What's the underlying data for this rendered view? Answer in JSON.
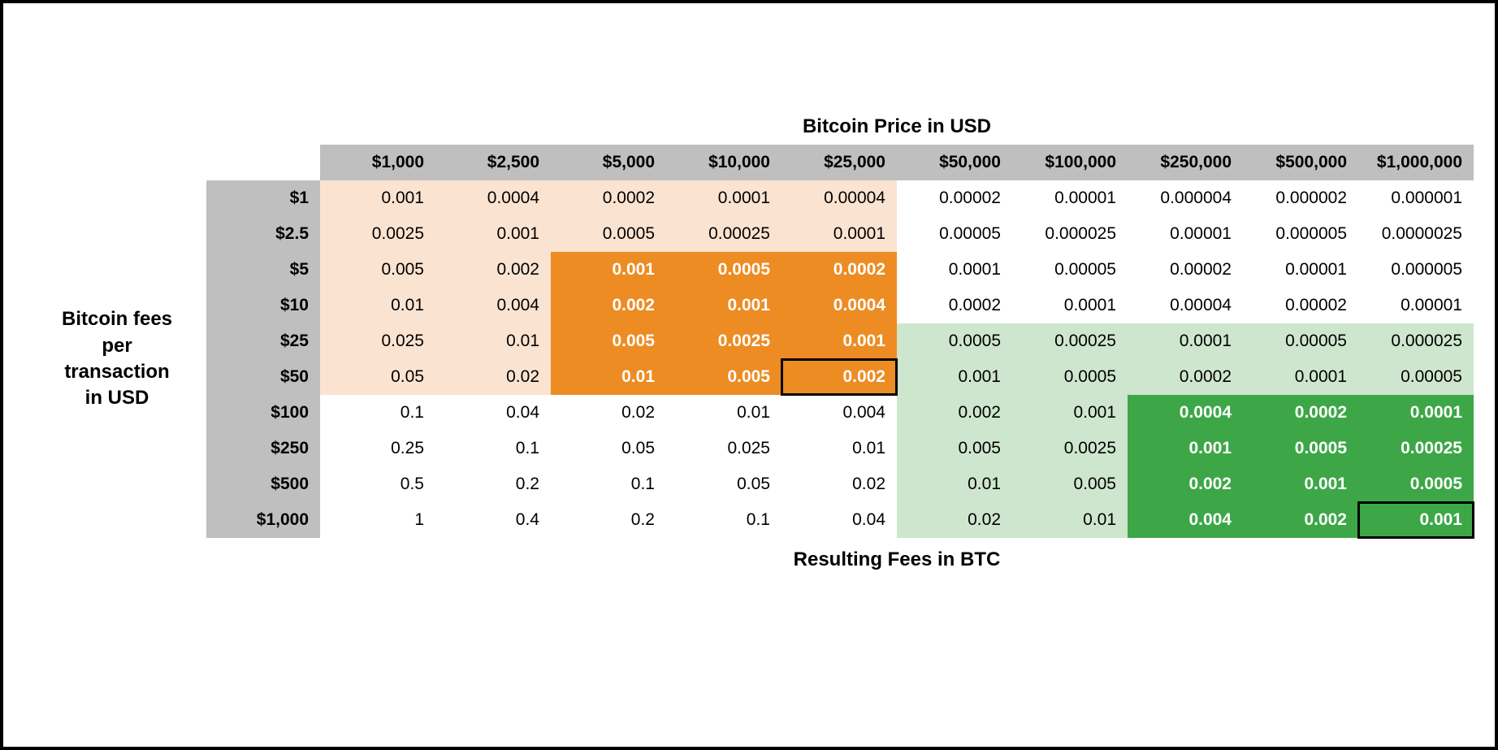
{
  "titles": {
    "top": "Bitcoin Price in USD",
    "side": "Bitcoin fees per transaction in USD",
    "bottom": "Resulting Fees in BTC"
  },
  "colors": {
    "header_bg": "#bfbfbf",
    "row_header_bg": "#bfbfbf",
    "light_orange": "#fbe3d1",
    "dark_orange": "#ed8c23",
    "light_green": "#cee6cd",
    "dark_green": "#3da748",
    "outline": "#000000",
    "white_text": "#ffffff",
    "text": "#000000",
    "background": "#ffffff"
  },
  "font": {
    "family": "Arial",
    "title_size_pt": 18,
    "header_size_pt": 16,
    "cell_size_pt": 16
  },
  "column_headers": [
    "$1,000",
    "$2,500",
    "$5,000",
    "$10,000",
    "$25,000",
    "$50,000",
    "$100,000",
    "$250,000",
    "$500,000",
    "$1,000,000"
  ],
  "row_headers": [
    "$1",
    "$2.5",
    "$5",
    "$10",
    "$25",
    "$50",
    "$100",
    "$250",
    "$500",
    "$1,000"
  ],
  "cells": [
    [
      "0.001",
      "0.0004",
      "0.0002",
      "0.0001",
      "0.00004",
      "0.00002",
      "0.00001",
      "0.000004",
      "0.000002",
      "0.000001"
    ],
    [
      "0.0025",
      "0.001",
      "0.0005",
      "0.00025",
      "0.0001",
      "0.00005",
      "0.000025",
      "0.00001",
      "0.000005",
      "0.0000025"
    ],
    [
      "0.005",
      "0.002",
      "0.001",
      "0.0005",
      "0.0002",
      "0.0001",
      "0.00005",
      "0.00002",
      "0.00001",
      "0.000005"
    ],
    [
      "0.01",
      "0.004",
      "0.002",
      "0.001",
      "0.0004",
      "0.0002",
      "0.0001",
      "0.00004",
      "0.00002",
      "0.00001"
    ],
    [
      "0.025",
      "0.01",
      "0.005",
      "0.0025",
      "0.001",
      "0.0005",
      "0.00025",
      "0.0001",
      "0.00005",
      "0.000025"
    ],
    [
      "0.05",
      "0.02",
      "0.01",
      "0.005",
      "0.002",
      "0.001",
      "0.0005",
      "0.0002",
      "0.0001",
      "0.00005"
    ],
    [
      "0.1",
      "0.04",
      "0.02",
      "0.01",
      "0.004",
      "0.002",
      "0.001",
      "0.0004",
      "0.0002",
      "0.0001"
    ],
    [
      "0.25",
      "0.1",
      "0.05",
      "0.025",
      "0.01",
      "0.005",
      "0.0025",
      "0.001",
      "0.0005",
      "0.00025"
    ],
    [
      "0.5",
      "0.2",
      "0.1",
      "0.05",
      "0.02",
      "0.01",
      "0.005",
      "0.002",
      "0.001",
      "0.0005"
    ],
    [
      "1",
      "0.4",
      "0.2",
      "0.1",
      "0.04",
      "0.02",
      "0.01",
      "0.004",
      "0.002",
      "0.001"
    ]
  ],
  "fill_regions": [
    {
      "color_key": "light_orange",
      "row_start": 0,
      "row_end": 5,
      "col_start": 0,
      "col_end": 4
    },
    {
      "color_key": "dark_orange",
      "row_start": 2,
      "row_end": 5,
      "col_start": 2,
      "col_end": 4,
      "white_text": true
    },
    {
      "color_key": "light_green",
      "row_start": 4,
      "row_end": 9,
      "col_start": 5,
      "col_end": 9
    },
    {
      "color_key": "dark_green",
      "row_start": 6,
      "row_end": 9,
      "col_start": 7,
      "col_end": 9,
      "white_text": true
    }
  ],
  "outlined_cells": [
    {
      "row": 5,
      "col": 4
    },
    {
      "row": 9,
      "col": 9
    }
  ]
}
